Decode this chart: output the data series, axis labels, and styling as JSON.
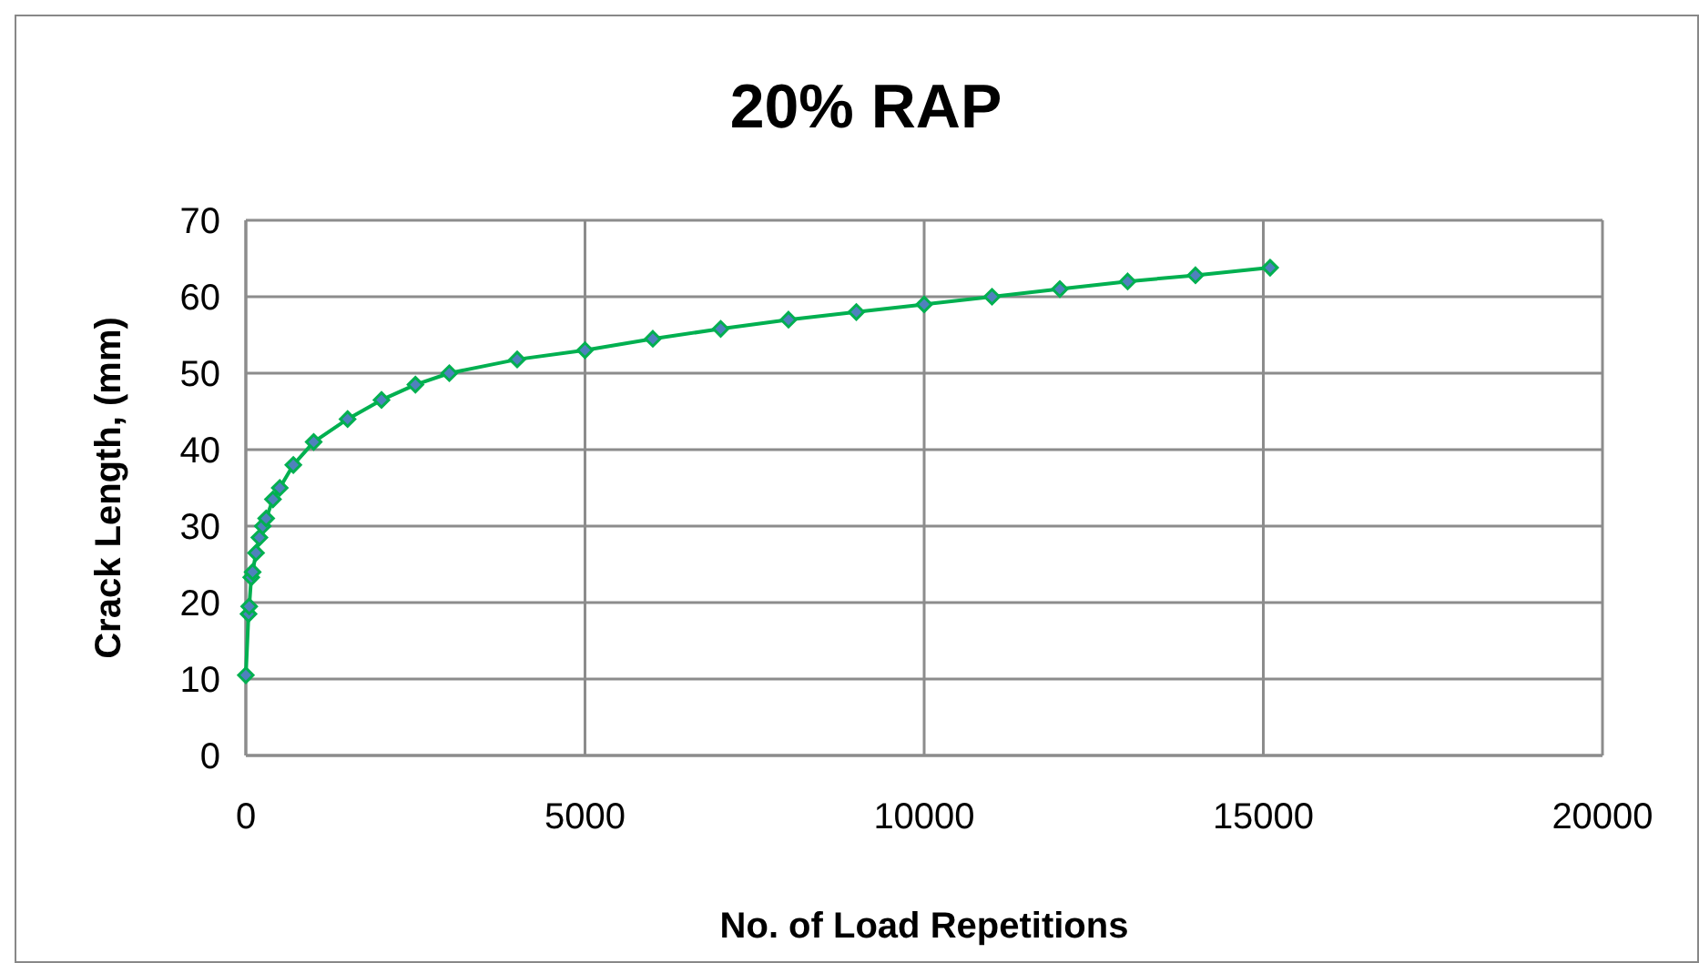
{
  "chart_data": {
    "type": "line",
    "title": "20% RAP",
    "xlabel": "No. of Load Repetitions",
    "ylabel": "Crack Length, (mm)",
    "x": [
      0,
      40,
      50,
      80,
      100,
      150,
      200,
      250,
      300,
      400,
      500,
      700,
      1000,
      1500,
      2000,
      2500,
      3000,
      4000,
      5000,
      6000,
      7000,
      8000,
      9000,
      10000,
      11000,
      12000,
      13000,
      14000,
      15100
    ],
    "series": [
      {
        "color": "#00b050",
        "values": [
          10.5,
          18.5,
          19.5,
          23.3,
          24,
          26.5,
          28.5,
          30,
          31,
          33.5,
          35,
          38,
          41,
          44,
          46.5,
          48.5,
          50,
          51.8,
          53,
          54.5,
          55.8,
          57,
          58,
          59,
          60,
          61,
          62,
          62.8,
          63.8
        ]
      }
    ],
    "xlim": [
      0,
      20000
    ],
    "xticks": [
      0,
      5000,
      10000,
      15000,
      20000
    ],
    "ylim": [
      0,
      70
    ],
    "yticks": [
      0,
      10,
      20,
      30,
      40,
      50,
      60,
      70
    ],
    "grid": true,
    "marker": "diamond",
    "line_style": "solid"
  }
}
